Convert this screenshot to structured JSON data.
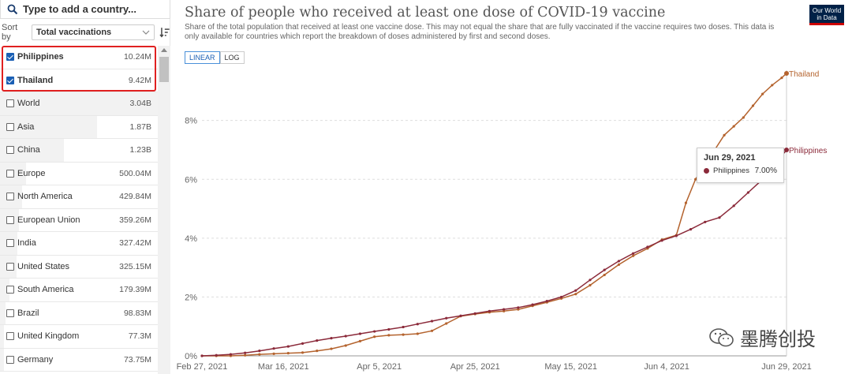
{
  "search": {
    "placeholder": "Type to add a country..."
  },
  "sort": {
    "label": "Sort by",
    "selected": "Total vaccinations"
  },
  "countries": [
    {
      "name": "Philippines",
      "value": "10.24M",
      "checked": true,
      "share": 0.0
    },
    {
      "name": "Thailand",
      "value": "9.42M",
      "checked": true,
      "share": 0.0
    },
    {
      "name": "World",
      "value": "3.04B",
      "checked": false,
      "share": 1.0
    },
    {
      "name": "Asia",
      "value": "1.87B",
      "checked": false,
      "share": 0.615
    },
    {
      "name": "China",
      "value": "1.23B",
      "checked": false,
      "share": 0.405
    },
    {
      "name": "Europe",
      "value": "500.04M",
      "checked": false,
      "share": 0.165
    },
    {
      "name": "North America",
      "value": "429.84M",
      "checked": false,
      "share": 0.141
    },
    {
      "name": "European Union",
      "value": "359.26M",
      "checked": false,
      "share": 0.118
    },
    {
      "name": "India",
      "value": "327.42M",
      "checked": false,
      "share": 0.108
    },
    {
      "name": "United States",
      "value": "325.15M",
      "checked": false,
      "share": 0.107
    },
    {
      "name": "South America",
      "value": "179.39M",
      "checked": false,
      "share": 0.059
    },
    {
      "name": "Brazil",
      "value": "98.83M",
      "checked": false,
      "share": 0.033
    },
    {
      "name": "United Kingdom",
      "value": "77.3M",
      "checked": false,
      "share": 0.025
    },
    {
      "name": "Germany",
      "value": "73.75M",
      "checked": false,
      "share": 0.024
    }
  ],
  "header": {
    "title": "Share of people who received at least one dose of COVID-19 vaccine",
    "subtitle": "Share of the total population that received at least one vaccine dose. This may not equal the share that are fully vaccinated if the vaccine requires two doses. This data is only available for countries which report the breakdown of doses administered by first and second doses.",
    "scale_linear": "LINEAR",
    "scale_log": "LOG",
    "logo_line1": "Our World",
    "logo_line2": "in Data"
  },
  "tooltip": {
    "date": "Jun 29, 2021",
    "series": "Philippines",
    "value": "7.00%"
  },
  "watermark": {
    "text": "墨腾创投"
  },
  "colors": {
    "thailand": "#b4632e",
    "philippines": "#8b2a3a",
    "accent": "#1a5fb4"
  },
  "chart_data": {
    "type": "line",
    "title": "Share of people who received at least one dose of COVID-19 vaccine",
    "x_ticks": [
      "Feb 27, 2021",
      "Mar 16, 2021",
      "Apr 5, 2021",
      "Apr 25, 2021",
      "May 15, 2021",
      "Jun 4, 2021",
      "Jun 29, 2021"
    ],
    "x_tick_days": [
      0,
      17,
      37,
      57,
      77,
      97,
      122
    ],
    "y_ticks": [
      "0%",
      "2%",
      "4%",
      "6%",
      "8%"
    ],
    "ylim": [
      0,
      9.6
    ],
    "xlim": [
      0,
      122
    ],
    "series": [
      {
        "name": "Thailand",
        "x": [
          0,
          3,
          6,
          9,
          12,
          15,
          18,
          21,
          24,
          27,
          30,
          33,
          36,
          39,
          42,
          45,
          48,
          51,
          54,
          57,
          60,
          63,
          66,
          69,
          72,
          75,
          78,
          81,
          84,
          87,
          90,
          93,
          96,
          99,
          101,
          103,
          105,
          107,
          109,
          111,
          113,
          115,
          117,
          119,
          121,
          122
        ],
        "values": [
          0,
          0,
          0,
          0.02,
          0.05,
          0.07,
          0.09,
          0.11,
          0.17,
          0.24,
          0.35,
          0.5,
          0.65,
          0.7,
          0.72,
          0.75,
          0.85,
          1.1,
          1.35,
          1.42,
          1.48,
          1.52,
          1.58,
          1.7,
          1.82,
          1.95,
          2.1,
          2.4,
          2.75,
          3.1,
          3.4,
          3.65,
          3.95,
          4.1,
          5.2,
          6.0,
          6.5,
          7.0,
          7.5,
          7.8,
          8.1,
          8.5,
          8.9,
          9.2,
          9.45,
          9.6
        ]
      },
      {
        "name": "Philippines",
        "x": [
          0,
          3,
          6,
          9,
          12,
          15,
          18,
          21,
          24,
          27,
          30,
          33,
          36,
          39,
          42,
          45,
          48,
          51,
          54,
          57,
          60,
          63,
          66,
          69,
          72,
          75,
          78,
          81,
          84,
          87,
          90,
          93,
          96,
          99,
          102,
          105,
          108,
          111,
          114,
          117,
          120,
          122
        ],
        "values": [
          0,
          0.02,
          0.05,
          0.1,
          0.17,
          0.25,
          0.32,
          0.42,
          0.52,
          0.6,
          0.67,
          0.75,
          0.83,
          0.9,
          0.98,
          1.08,
          1.18,
          1.28,
          1.36,
          1.44,
          1.52,
          1.58,
          1.64,
          1.74,
          1.86,
          2.0,
          2.22,
          2.58,
          2.92,
          3.22,
          3.48,
          3.7,
          3.92,
          4.08,
          4.3,
          4.55,
          4.7,
          5.1,
          5.55,
          6.0,
          6.6,
          7.0
        ]
      }
    ]
  }
}
